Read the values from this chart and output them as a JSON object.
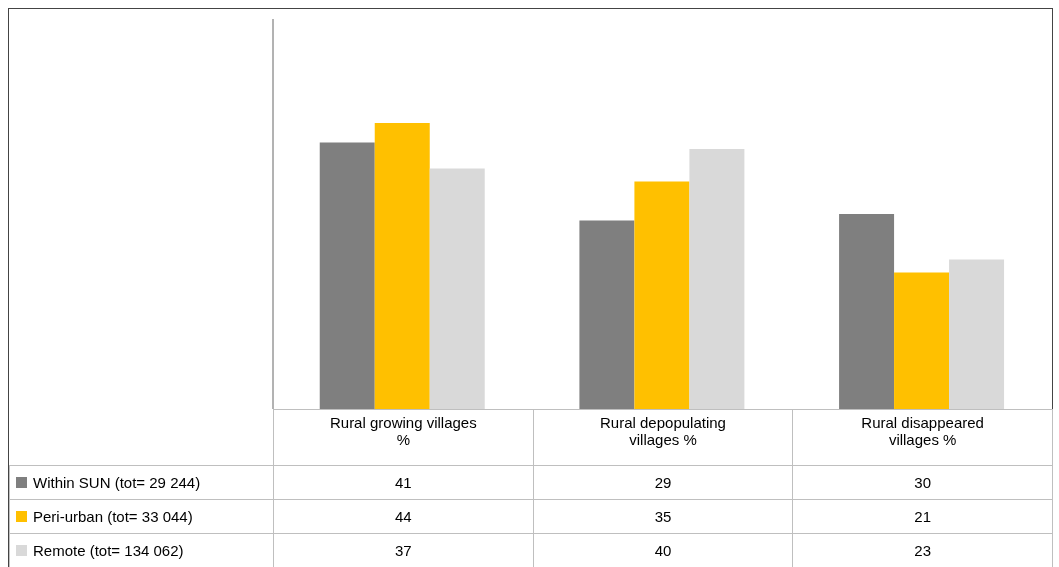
{
  "chart_data": {
    "type": "bar",
    "categories": [
      "Rural growing villages %",
      "Rural depopulating villages %",
      "Rural disappeared villages %"
    ],
    "series": [
      {
        "name": "Within SUN (tot= 29 244)",
        "color": "#7f7f7f",
        "values": [
          41,
          29,
          30
        ]
      },
      {
        "name": "Peri-urban (tot= 33 044)",
        "color": "#ffc000",
        "values": [
          44,
          35,
          21
        ]
      },
      {
        "name": "Remote (tot= 134 062)",
        "color": "#d9d9d9",
        "values": [
          37,
          40,
          23
        ]
      }
    ],
    "data_labels": true,
    "legend": "bottom",
    "grid": false,
    "tick_labels": "x"
  }
}
